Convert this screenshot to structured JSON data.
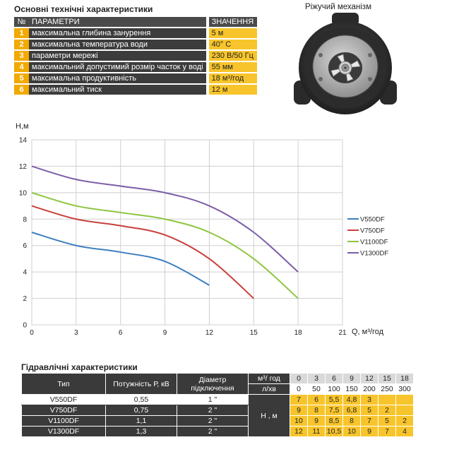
{
  "specs": {
    "title": "Основні технічні характеристики",
    "header": {
      "num": "№",
      "param": "ПАРАМЕТРИ",
      "value": "ЗНАЧЕННЯ"
    },
    "rows": [
      {
        "num": "1",
        "param": "максимальна глибина занурення",
        "value": "5 м"
      },
      {
        "num": "2",
        "param": "максимальна температура води",
        "value": "40° С"
      },
      {
        "num": "3",
        "param": "параметри мережі",
        "value": "230 В/50 Гц"
      },
      {
        "num": "4",
        "param": "максимальний допустимий розмір часток у воді",
        "value": "55 мм"
      },
      {
        "num": "5",
        "param": "максимальна продуктивність",
        "value": "18 м³/год"
      },
      {
        "num": "6",
        "param": "максимальний тиск",
        "value": "12 м"
      }
    ]
  },
  "cutter": {
    "caption": "Ріжучий механізм"
  },
  "chart_data": {
    "type": "line",
    "title": "",
    "xlabel": "Q, м³/год",
    "ylabel": "H,м",
    "xlim": [
      0,
      21
    ],
    "ylim": [
      0,
      14
    ],
    "xticks": [
      0,
      3,
      6,
      9,
      12,
      15,
      18,
      21
    ],
    "yticks": [
      0,
      2,
      4,
      6,
      8,
      10,
      12,
      14
    ],
    "x_tick_labels": [
      "0",
      "3",
      "6",
      "9",
      "12",
      "15",
      "18",
      "21"
    ],
    "y_tick_labels": [
      "0",
      "2",
      "4",
      "6",
      "8",
      "10",
      "12",
      "14"
    ],
    "grid": true,
    "legend": "right",
    "series": [
      {
        "name": "V550DF",
        "color": "#3d7fc0",
        "x": [
          0,
          3,
          6,
          9,
          12
        ],
        "y": [
          7,
          6,
          5.5,
          4.8,
          3
        ]
      },
      {
        "name": "V750DF",
        "color": "#c8403b",
        "x": [
          0,
          3,
          6,
          9,
          12,
          15
        ],
        "y": [
          9,
          8,
          7.5,
          6.8,
          5,
          2
        ]
      },
      {
        "name": "V1100DF",
        "color": "#8cc63f",
        "x": [
          0,
          3,
          6,
          9,
          12,
          15,
          18
        ],
        "y": [
          10,
          9,
          8.5,
          8,
          7,
          5,
          2
        ]
      },
      {
        "name": "V1300DF",
        "color": "#7b5ea8",
        "x": [
          0,
          3,
          6,
          9,
          12,
          15,
          18
        ],
        "y": [
          12,
          11,
          10.5,
          10,
          9,
          7,
          4
        ]
      }
    ]
  },
  "hydraulic": {
    "title": "Гідравлічні характеристики",
    "headers": {
      "type": "Тип",
      "power": "Потужність Р, кВ",
      "diameter": "Діаметр підключення",
      "unit1": "м³/ год",
      "unit2": "л/хв",
      "head": "Н , м"
    },
    "q_m3h": [
      "0",
      "3",
      "6",
      "9",
      "12",
      "15",
      "18"
    ],
    "q_lmin": [
      "0",
      "50",
      "100",
      "150",
      "200",
      "250",
      "300"
    ],
    "rows": [
      {
        "type": "V550DF",
        "power": "0,55",
        "diameter": "1 \"",
        "h": [
          "7",
          "6",
          "5,5",
          "4,8",
          "3",
          "",
          ""
        ]
      },
      {
        "type": "V750DF",
        "power": "0,75",
        "diameter": "2 \"",
        "h": [
          "9",
          "8",
          "7,5",
          "6,8",
          "5",
          "2",
          ""
        ]
      },
      {
        "type": "V1100DF",
        "power": "1,1",
        "diameter": "2 \"",
        "h": [
          "10",
          "9",
          "8,5",
          "8",
          "7",
          "5",
          "2"
        ]
      },
      {
        "type": "V1300DF",
        "power": "1,3",
        "diameter": "2 \"",
        "h": [
          "12",
          "11",
          "10,5",
          "10",
          "9",
          "7",
          "4"
        ]
      }
    ]
  }
}
